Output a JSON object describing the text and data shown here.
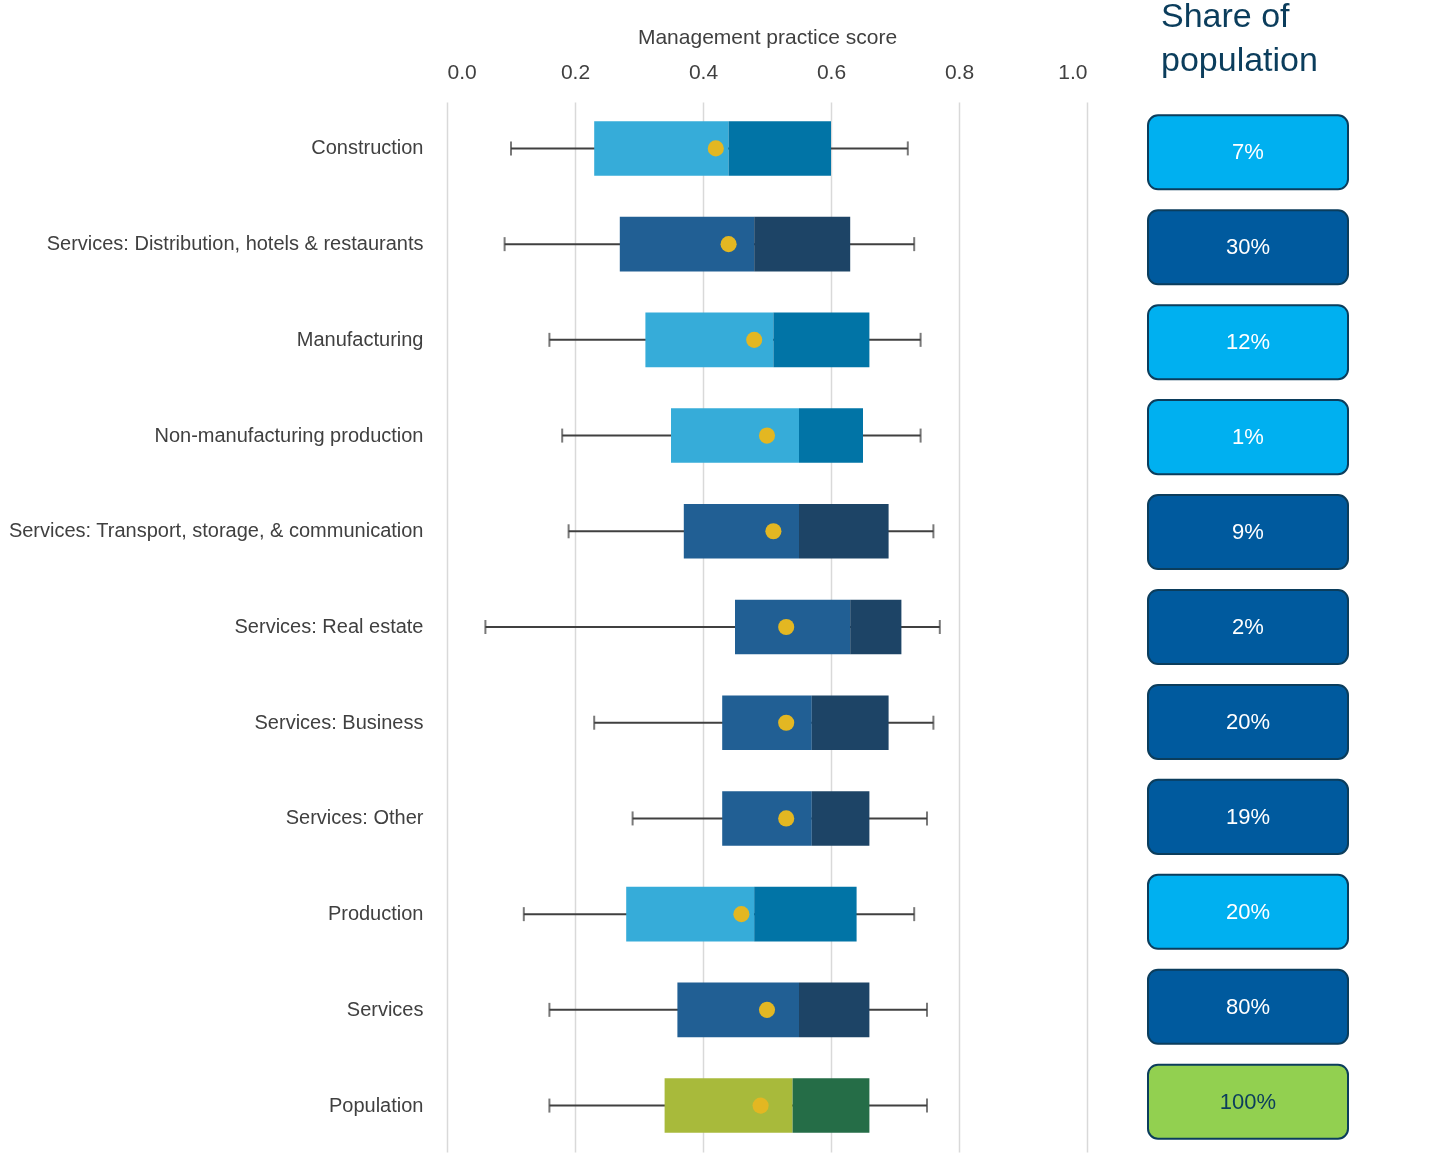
{
  "chart_data": [
    {
      "type": "box",
      "xlabel": "Management practice score",
      "orientation": "horizontal",
      "xlim": [
        0,
        1
      ],
      "xticks": [
        {
          "value": 0,
          "label": "0.0"
        },
        0.2,
        0.4,
        0.6,
        0.8,
        {
          "value": 1,
          "label": "1.0"
        }
      ],
      "grid": "x",
      "marker": "circle",
      "categories": [
        "Construction",
        "Services: Distribution, hotels & restaurants",
        "Manufacturing",
        "Non-manufacturing production",
        "Services: Transport, storage, & communication",
        "Services: Real estate",
        "Services: Business",
        "Services: Other",
        "Production",
        "Services",
        "Population"
      ],
      "boxes": [
        {
          "low": 0.1,
          "q1": 0.23,
          "median": 0.44,
          "q3": 0.6,
          "high": 0.72,
          "mean": 0.42
        },
        {
          "low": 0.09,
          "q1": 0.27,
          "median": 0.48,
          "q3": 0.63,
          "high": 0.73,
          "mean": 0.44
        },
        {
          "low": 0.16,
          "q1": 0.31,
          "median": 0.51,
          "q3": 0.66,
          "high": 0.74,
          "mean": 0.48
        },
        {
          "low": 0.18,
          "q1": 0.35,
          "median": 0.55,
          "q3": 0.65,
          "high": 0.74,
          "mean": 0.5
        },
        {
          "low": 0.19,
          "q1": 0.37,
          "median": 0.55,
          "q3": 0.69,
          "high": 0.76,
          "mean": 0.51
        },
        {
          "low": 0.06,
          "q1": 0.45,
          "median": 0.63,
          "q3": 0.71,
          "high": 0.77,
          "mean": 0.53
        },
        {
          "low": 0.23,
          "q1": 0.43,
          "median": 0.57,
          "q3": 0.69,
          "high": 0.76,
          "mean": 0.53
        },
        {
          "low": 0.29,
          "q1": 0.43,
          "median": 0.57,
          "q3": 0.66,
          "high": 0.75,
          "mean": 0.53
        },
        {
          "low": 0.12,
          "q1": 0.28,
          "median": 0.48,
          "q3": 0.64,
          "high": 0.73,
          "mean": 0.46
        },
        {
          "low": 0.16,
          "q1": 0.36,
          "median": 0.55,
          "q3": 0.66,
          "high": 0.75,
          "mean": 0.5
        },
        {
          "low": 0.16,
          "q1": 0.34,
          "median": 0.54,
          "q3": 0.66,
          "high": 0.75,
          "mean": 0.49
        }
      ],
      "colors": [
        [
          "#36acd9",
          "#0174a6"
        ],
        [
          "#215f94",
          "#1d4466"
        ],
        [
          "#36acd9",
          "#0174a6"
        ],
        [
          "#36acd9",
          "#0174a6"
        ],
        [
          "#215f94",
          "#1d4466"
        ],
        [
          "#215f94",
          "#1d4466"
        ],
        [
          "#215f94",
          "#1d4466"
        ],
        [
          "#215f94",
          "#1d4466"
        ],
        [
          "#36acd9",
          "#0174a6"
        ],
        [
          "#215f94",
          "#1d4466"
        ],
        [
          "#a8ba3b",
          "#256d47"
        ]
      ]
    },
    {
      "type": "other",
      "title": "Share of population",
      "annotations": [
        "7%",
        "30%",
        "12%",
        "1%",
        "9%",
        "2%",
        "20%",
        "19%",
        "20%",
        "80%",
        "100%"
      ],
      "colors": [
        "#00b0f0",
        "#005a9e",
        "#00b0f0",
        "#00b0f0",
        "#005a9e",
        "#005a9e",
        "#005a9e",
        "#005a9e",
        "#00b0f0",
        "#005a9e",
        "#92d050"
      ]
    }
  ]
}
